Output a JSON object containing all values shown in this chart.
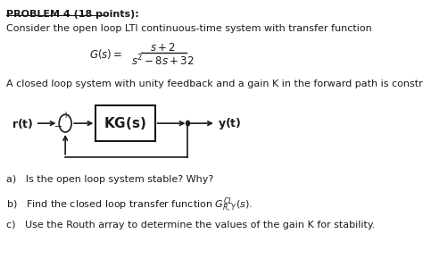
{
  "title": "PROBLEM 4 (18 points):",
  "line1": "Consider the open loop LTI continuous-time system with transfer function",
  "line2": "A closed loop system with unity feedback and a gain K in the forward path is constructed.",
  "qa": "a)   Is the open loop system stable? Why?",
  "qc": "c)   Use the Routh array to determine the values of the gain K for stability.",
  "text_color": "#1a1a1a",
  "fig_width": 4.74,
  "fig_height": 2.99
}
